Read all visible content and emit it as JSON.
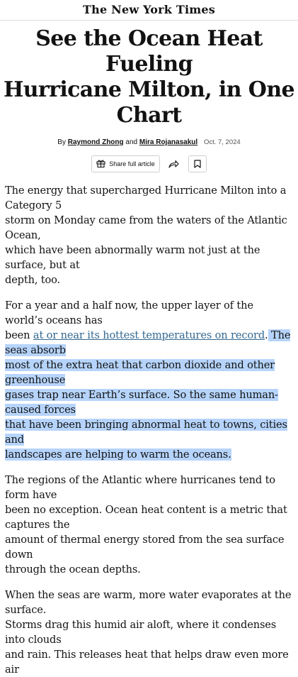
{
  "masthead": {
    "title": "The New York Times"
  },
  "article": {
    "headline_line1": "See the Ocean Heat Fueling",
    "headline_line2": "Hurricane Milton, in One Chart",
    "byline_prefix": "By",
    "author1": "Raymond Zhong",
    "byline_and": "and",
    "author2": "Mira Rojanasakul",
    "date": "Oct. 7, 2024"
  },
  "toolbar": {
    "share_full_label": "Share full article"
  },
  "paragraphs": {
    "p1": {
      "l1": "The energy that supercharged Hurricane Milton into a Category 5",
      "l2": "storm on Monday came from the waters of the Atlantic Ocean,",
      "l3": "which have been abnormally warm not just at the surface, but at",
      "l4": "depth, too."
    },
    "p2": {
      "l1": "For a year and a half now, the upper layer of the world’s oceans has",
      "l2_pre": "been ",
      "l2_link": "at or near its hottest temperatures on record",
      "l2_dot": ".",
      "l2_post": " The seas absorb",
      "l3": "most of the extra heat that carbon dioxide and other greenhouse",
      "l4": "gases trap near Earth’s surface. So the same human-caused forces",
      "l5": "that have been bringing abnormal heat to towns, cities and",
      "l6": "landscapes are helping to warm the oceans."
    },
    "p3": {
      "l1": "The regions of the Atlantic where hurricanes tend to form have",
      "l2": "been no exception. Ocean heat content is a metric that captures the",
      "l3": "amount of thermal energy stored from the sea surface down",
      "l4": "through the ocean depths."
    },
    "p4": {
      "l1": "When the seas are warm, more water evaporates at the surface.",
      "l2": "Storms drag this humid air aloft, where it condenses into clouds",
      "l3": "and rain. This releases heat that helps draw even more air"
    }
  }
}
